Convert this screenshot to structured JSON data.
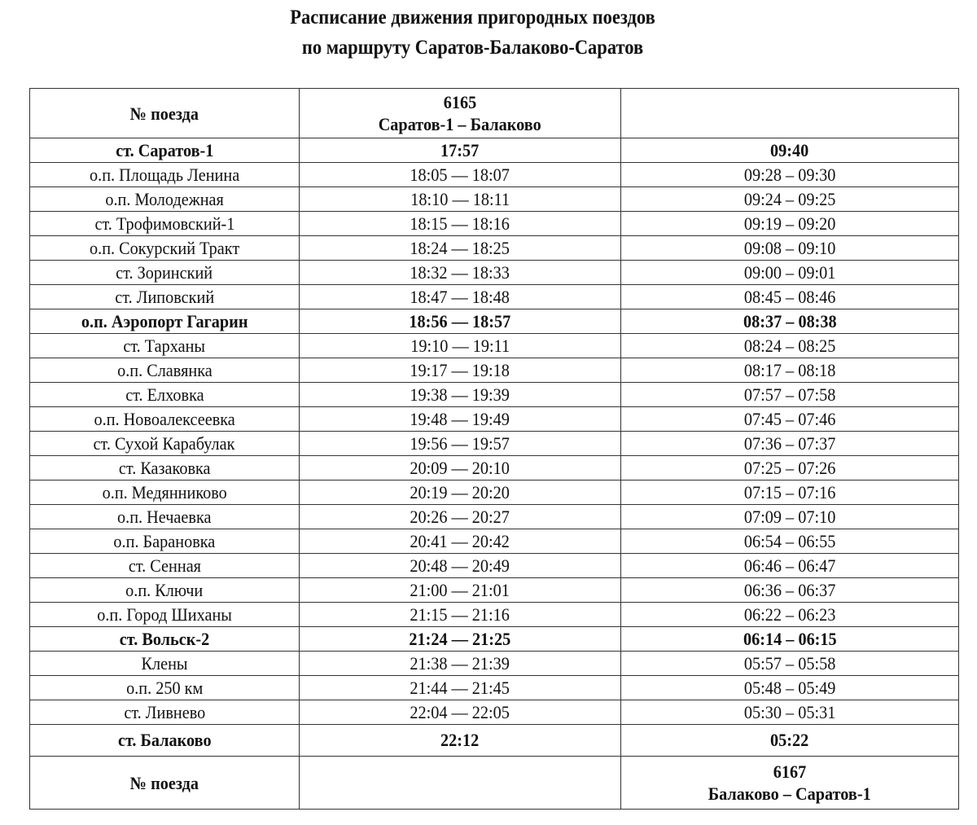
{
  "title": {
    "line1": "Расписание движения пригородных поездов",
    "line2": "по маршруту Саратов-Балаково-Саратов"
  },
  "header": {
    "label": "№ поезда",
    "train1_number": "6165",
    "train1_route": "Саратов-1 – Балаково",
    "train2_cell": ""
  },
  "rows": [
    {
      "station": "ст. Саратов-1",
      "t1": "17:57",
      "t2": "09:40",
      "bold": true
    },
    {
      "station": "о.п. Площадь Ленина",
      "t1": "18:05 — 18:07",
      "t2": "09:28 – 09:30"
    },
    {
      "station": "о.п. Молодежная",
      "t1": "18:10 — 18:11",
      "t2": "09:24 – 09:25"
    },
    {
      "station": "ст. Трофимовский-1",
      "t1": "18:15 — 18:16",
      "t2": "09:19 – 09:20"
    },
    {
      "station": "о.п. Сокурский Тракт",
      "t1": "18:24 — 18:25",
      "t2": "09:08 – 09:10"
    },
    {
      "station": "ст. Зоринский",
      "t1": "18:32 — 18:33",
      "t2": "09:00 – 09:01"
    },
    {
      "station": "ст. Липовский",
      "t1": "18:47 — 18:48",
      "t2": "08:45 – 08:46"
    },
    {
      "station": "о.п. Аэропорт Гагарин",
      "t1": "18:56 — 18:57",
      "t2": "08:37 – 08:38",
      "bold": true
    },
    {
      "station": "ст. Тарханы",
      "t1": "19:10 — 19:11",
      "t2": "08:24 – 08:25"
    },
    {
      "station": "о.п. Славянка",
      "t1": "19:17 — 19:18",
      "t2": "08:17 – 08:18"
    },
    {
      "station": "ст. Елховка",
      "t1": "19:38 — 19:39",
      "t2": "07:57 – 07:58"
    },
    {
      "station": "о.п. Новоалексеевка",
      "t1": "19:48 — 19:49",
      "t2": "07:45 – 07:46"
    },
    {
      "station": "ст. Сухой Карабулак",
      "t1": "19:56 — 19:57",
      "t2": "07:36 – 07:37"
    },
    {
      "station": "ст. Казаковка",
      "t1": "20:09 — 20:10",
      "t2": "07:25 – 07:26"
    },
    {
      "station": "о.п. Медянниково",
      "t1": "20:19 — 20:20",
      "t2": "07:15 – 07:16"
    },
    {
      "station": "о.п. Нечаевка",
      "t1": "20:26 — 20:27",
      "t2": "07:09 – 07:10"
    },
    {
      "station": "о.п. Барановка",
      "t1": "20:41 — 20:42",
      "t2": "06:54 – 06:55"
    },
    {
      "station": "ст. Сенная",
      "t1": "20:48 — 20:49",
      "t2": "06:46 – 06:47"
    },
    {
      "station": "о.п. Ключи",
      "t1": "21:00 — 21:01",
      "t2": "06:36 – 06:37"
    },
    {
      "station": "о.п. Город Шиханы",
      "t1": "21:15 — 21:16",
      "t2": "06:22 – 06:23"
    },
    {
      "station": "ст. Вольск-2",
      "t1": "21:24 — 21:25",
      "t2": "06:14 – 06:15",
      "bold": true
    },
    {
      "station": "Клены",
      "t1": "21:38 — 21:39",
      "t2": "05:57 – 05:58"
    },
    {
      "station": "о.п. 250 км",
      "t1": "21:44 — 21:45",
      "t2": "05:48 – 05:49"
    },
    {
      "station": "ст. Ливнево",
      "t1": "22:04 — 22:05",
      "t2": "05:30 – 05:31"
    },
    {
      "station": "ст. Балаково",
      "t1": "22:12",
      "t2": "05:22",
      "bold": true,
      "end": true
    }
  ],
  "footer": {
    "label": "№ поезда",
    "train1_cell": "",
    "train2_number": "6167",
    "train2_route": "Балаково – Саратов-1"
  }
}
